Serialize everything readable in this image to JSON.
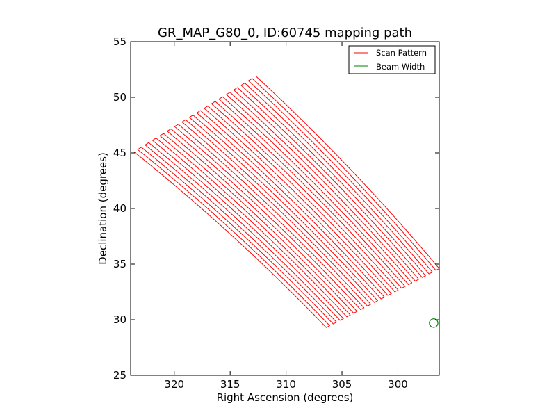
{
  "chart_data": {
    "type": "line",
    "title": "GR_MAP_G80_0, ID:60745 mapping path",
    "xlabel": "Right Ascension (degrees)",
    "ylabel": "Declination (degrees)",
    "xlim": [
      323.9,
      296.3
    ],
    "ylim": [
      25,
      55
    ],
    "xticks": [
      320,
      315,
      310,
      305,
      300
    ],
    "yticks": [
      25,
      30,
      35,
      40,
      45,
      50,
      55
    ],
    "legend_position": "top-right",
    "legend": [
      "Scan Pattern",
      "Beam Width"
    ],
    "series": [
      {
        "name": "Scan Pattern",
        "color": "#ff0000",
        "type": "raster-scan",
        "n_legs": 34,
        "start_edge": [
          [
            323.6,
            45.1
          ],
          [
            312.7,
            51.9
          ]
        ],
        "end_edge": [
          [
            306.4,
            29.3
          ],
          [
            296.3,
            34.6
          ]
        ]
      },
      {
        "name": "Beam Width",
        "color": "#008000",
        "type": "circle",
        "center": [
          296.8,
          29.7
        ],
        "radius_deg": 0.38
      }
    ]
  }
}
